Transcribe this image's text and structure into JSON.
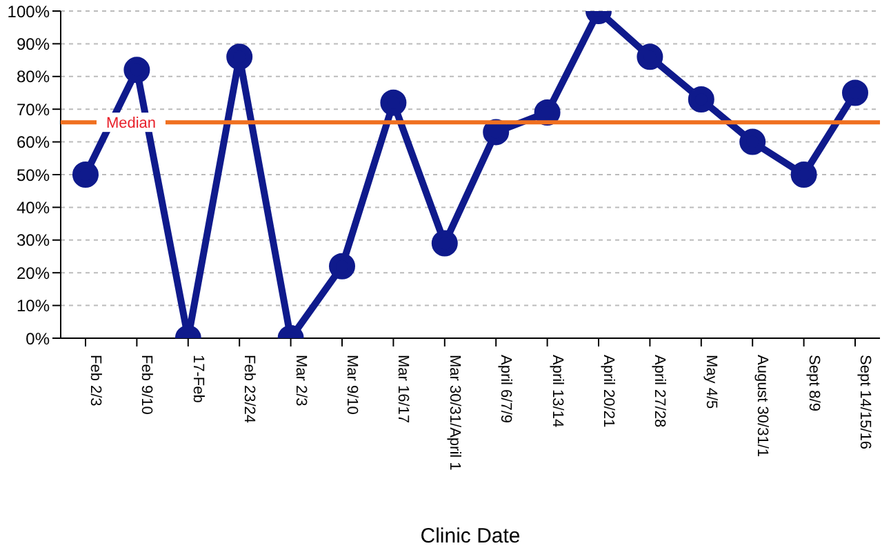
{
  "chart_data": {
    "type": "line",
    "xlabel": "Clinic Date",
    "categories": [
      "Feb 2/3",
      "Feb 9/10",
      "17-Feb",
      "Feb 23/24",
      "Mar 2/3",
      "Mar 9/10",
      "Mar 16/17",
      "Mar 30/31/April 1",
      "April 6/7/9",
      "April 13/14",
      "April 20/21",
      "April 27/28",
      "May 4/5",
      "August 30/31/1",
      "Sept 8/9",
      "Sept 14/15/16"
    ],
    "series": [
      {
        "color": "#0f1a8c",
        "values": [
          50,
          82,
          0,
          86,
          0,
          22,
          72,
          29,
          63,
          69,
          100,
          86,
          73,
          60,
          50,
          75
        ]
      }
    ],
    "ylim": [
      0,
      100
    ],
    "yticks": [
      {
        "value": 0,
        "label": "0%"
      },
      {
        "value": 10,
        "label": "10%"
      },
      {
        "value": 20,
        "label": "20%"
      },
      {
        "value": 30,
        "label": "30%"
      },
      {
        "value": 40,
        "label": "40%"
      },
      {
        "value": 50,
        "label": "50%"
      },
      {
        "value": 60,
        "label": "60%"
      },
      {
        "value": 70,
        "label": "70%"
      },
      {
        "value": 80,
        "label": "80%"
      },
      {
        "value": 90,
        "label": "90%"
      },
      {
        "value": 100,
        "label": "100%"
      }
    ],
    "ref_lines": [
      {
        "axis": "y",
        "value": 66,
        "label": "Median",
        "color": "#f07020"
      }
    ],
    "grid": "y",
    "legend": false,
    "marker": "circle",
    "line_style": "solid"
  }
}
